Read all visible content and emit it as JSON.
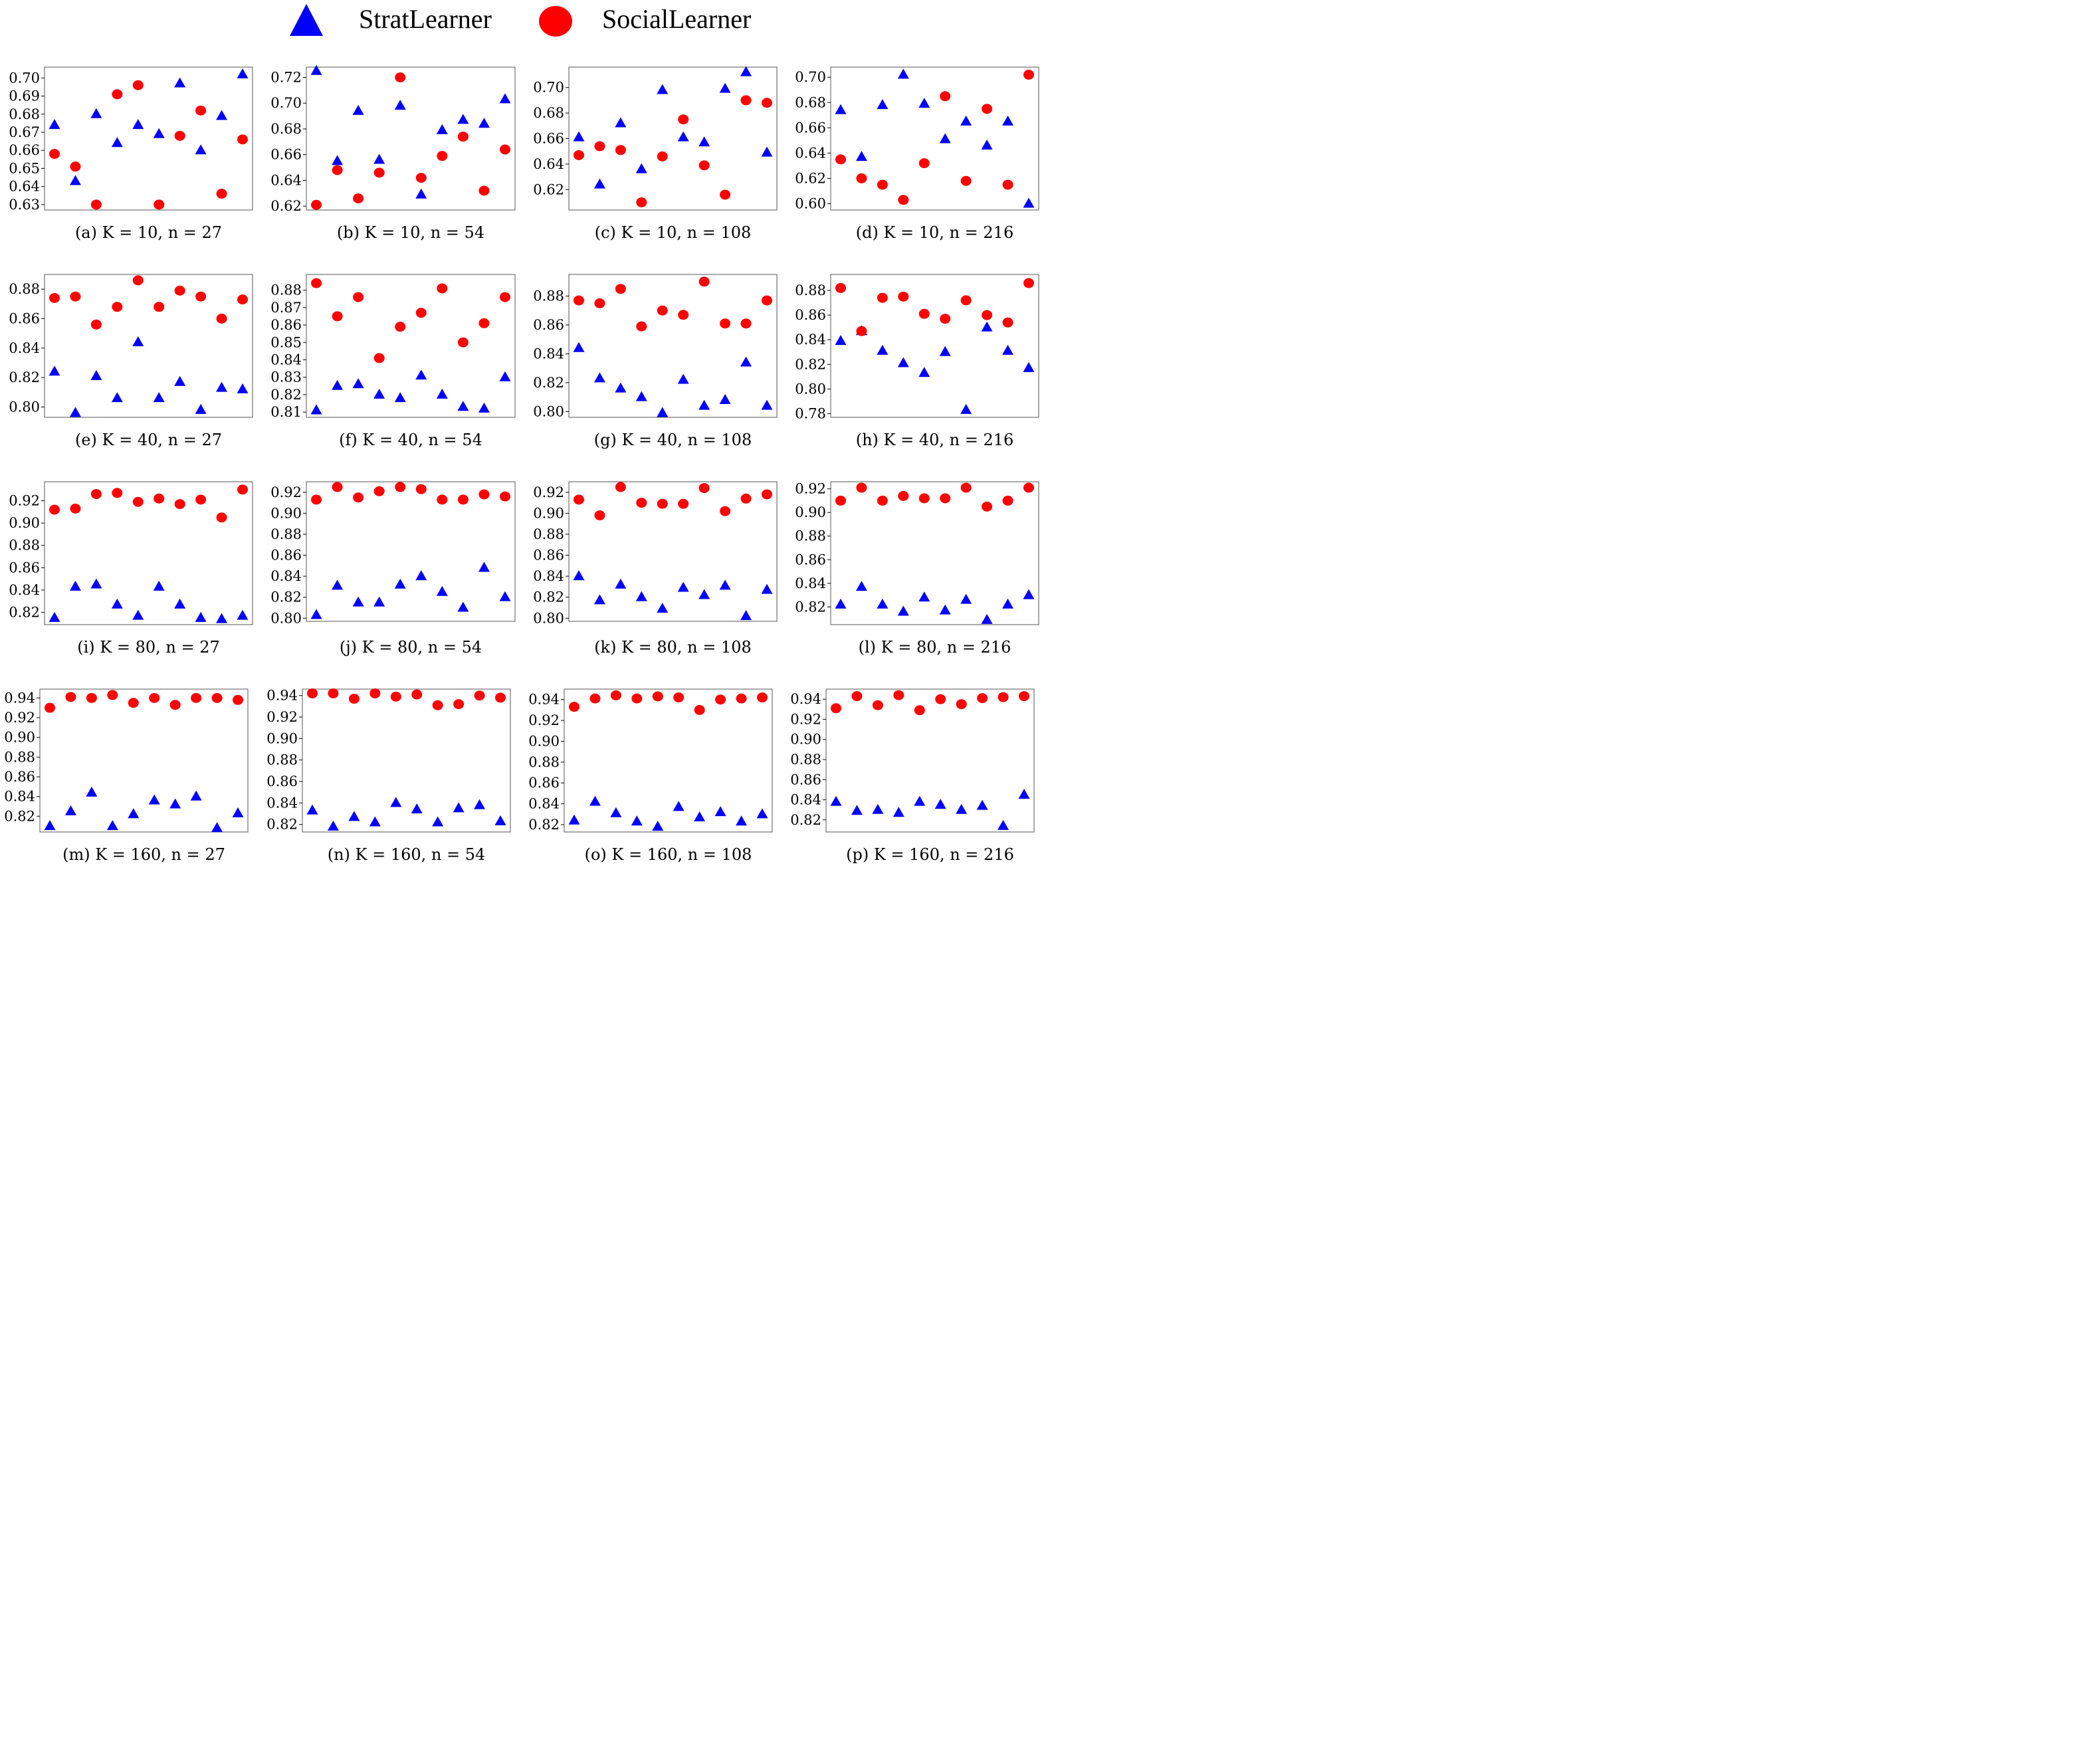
{
  "legend": {
    "strat": {
      "label": "StratLearner",
      "color": "#0000ff",
      "icon": "triangle-icon"
    },
    "social": {
      "label": "SocialLearner",
      "color": "#ff0000",
      "icon": "circle-icon"
    }
  },
  "chart_data": [
    {
      "type": "scatter",
      "caption": "(a) K = 10, n = 27",
      "yticks": [
        "0.63",
        "0.64",
        "0.65",
        "0.66",
        "0.67",
        "0.68",
        "0.69",
        "0.70"
      ],
      "ylim": [
        0.627,
        0.706
      ],
      "x": [
        1,
        2,
        3,
        4,
        5,
        6,
        7,
        8,
        9,
        10
      ],
      "series": [
        {
          "name": "StratLearner",
          "values": [
            0.674,
            0.643,
            0.68,
            0.664,
            0.674,
            0.669,
            0.697,
            0.66,
            0.679,
            0.702
          ]
        },
        {
          "name": "SocialLearner",
          "values": [
            0.658,
            0.651,
            0.63,
            0.691,
            0.696,
            0.63,
            0.668,
            0.682,
            0.636,
            0.666
          ]
        }
      ]
    },
    {
      "type": "scatter",
      "caption": "(b) K = 10, n = 54",
      "yticks": [
        "0.62",
        "0.64",
        "0.66",
        "0.68",
        "0.70",
        "0.72"
      ],
      "ylim": [
        0.617,
        0.728
      ],
      "x": [
        1,
        2,
        3,
        4,
        5,
        6,
        7,
        8,
        9,
        10
      ],
      "series": [
        {
          "name": "StratLearner",
          "values": [
            0.725,
            0.655,
            0.694,
            0.656,
            0.698,
            0.629,
            0.679,
            0.687,
            0.684,
            0.703
          ]
        },
        {
          "name": "SocialLearner",
          "values": [
            0.621,
            0.648,
            0.626,
            0.646,
            0.72,
            0.642,
            0.659,
            0.674,
            0.632,
            0.664
          ]
        }
      ]
    },
    {
      "type": "scatter",
      "caption": "(c) K = 10, n = 108",
      "yticks": [
        "0.62",
        "0.64",
        "0.66",
        "0.68",
        "0.70"
      ],
      "ylim": [
        0.604,
        0.716
      ],
      "x": [
        1,
        2,
        3,
        4,
        5,
        6,
        7,
        8,
        9,
        10
      ],
      "series": [
        {
          "name": "StratLearner",
          "values": [
            0.661,
            0.624,
            0.672,
            0.636,
            0.698,
            0.661,
            0.657,
            0.699,
            0.712,
            0.649
          ]
        },
        {
          "name": "SocialLearner",
          "values": [
            0.647,
            0.654,
            0.651,
            0.61,
            0.646,
            0.675,
            0.639,
            0.616,
            0.69,
            0.688
          ]
        }
      ]
    },
    {
      "type": "scatter",
      "caption": "(d) K = 10, n = 216",
      "yticks": [
        "0.60",
        "0.62",
        "0.64",
        "0.66",
        "0.68",
        "0.70"
      ],
      "ylim": [
        0.595,
        0.708
      ],
      "x": [
        1,
        2,
        3,
        4,
        5,
        6,
        7,
        8,
        9,
        10
      ],
      "series": [
        {
          "name": "StratLearner",
          "values": [
            0.674,
            0.637,
            0.678,
            0.702,
            0.679,
            0.651,
            0.665,
            0.646,
            0.665,
            0.6
          ]
        },
        {
          "name": "SocialLearner",
          "values": [
            0.635,
            0.62,
            0.615,
            0.603,
            0.632,
            0.685,
            0.618,
            0.675,
            0.615,
            0.702
          ]
        }
      ]
    },
    {
      "type": "scatter",
      "caption": "(e) K = 40, n = 27",
      "yticks": [
        "0.80",
        "0.82",
        "0.84",
        "0.86",
        "0.88"
      ],
      "ylim": [
        0.793,
        0.89
      ],
      "x": [
        1,
        2,
        3,
        4,
        5,
        6,
        7,
        8,
        9,
        10
      ],
      "series": [
        {
          "name": "StratLearner",
          "values": [
            0.824,
            0.796,
            0.821,
            0.806,
            0.844,
            0.806,
            0.817,
            0.798,
            0.813,
            0.812
          ]
        },
        {
          "name": "SocialLearner",
          "values": [
            0.874,
            0.875,
            0.856,
            0.868,
            0.886,
            0.868,
            0.879,
            0.875,
            0.86,
            0.873
          ]
        }
      ]
    },
    {
      "type": "scatter",
      "caption": "(f) K = 40, n = 54",
      "yticks": [
        "0.81",
        "0.82",
        "0.83",
        "0.84",
        "0.85",
        "0.86",
        "0.87",
        "0.88"
      ],
      "ylim": [
        0.807,
        0.889
      ],
      "x": [
        1,
        2,
        3,
        4,
        5,
        6,
        7,
        8,
        9,
        10
      ],
      "series": [
        {
          "name": "StratLearner",
          "values": [
            0.811,
            0.825,
            0.826,
            0.82,
            0.818,
            0.831,
            0.82,
            0.813,
            0.812,
            0.83
          ]
        },
        {
          "name": "SocialLearner",
          "values": [
            0.884,
            0.865,
            0.876,
            0.841,
            0.859,
            0.867,
            0.881,
            0.85,
            0.861,
            0.876
          ]
        }
      ]
    },
    {
      "type": "scatter",
      "caption": "(g) K = 40, n = 108",
      "yticks": [
        "0.80",
        "0.82",
        "0.84",
        "0.86",
        "0.88"
      ],
      "ylim": [
        0.796,
        0.895
      ],
      "x": [
        1,
        2,
        3,
        4,
        5,
        6,
        7,
        8,
        9,
        10
      ],
      "series": [
        {
          "name": "StratLearner",
          "values": [
            0.844,
            0.823,
            0.816,
            0.81,
            0.799,
            0.822,
            0.804,
            0.808,
            0.834,
            0.804
          ]
        },
        {
          "name": "SocialLearner",
          "values": [
            0.877,
            0.875,
            0.885,
            0.859,
            0.87,
            0.867,
            0.89,
            0.861,
            0.861,
            0.877
          ]
        }
      ]
    },
    {
      "type": "scatter",
      "caption": "(h) K = 40, n = 216",
      "yticks": [
        "0.78",
        "0.80",
        "0.82",
        "0.84",
        "0.86",
        "0.88"
      ],
      "ylim": [
        0.777,
        0.893
      ],
      "x": [
        1,
        2,
        3,
        4,
        5,
        6,
        7,
        8,
        9,
        10
      ],
      "series": [
        {
          "name": "StratLearner",
          "values": [
            0.839,
            0.847,
            0.831,
            0.821,
            0.813,
            0.83,
            0.783,
            0.85,
            0.831,
            0.817
          ]
        },
        {
          "name": "SocialLearner",
          "values": [
            0.882,
            0.847,
            0.874,
            0.875,
            0.861,
            0.857,
            0.872,
            0.86,
            0.854,
            0.886
          ]
        }
      ]
    },
    {
      "type": "scatter",
      "caption": "(i) K = 80, n = 27",
      "yticks": [
        "0.82",
        "0.84",
        "0.86",
        "0.88",
        "0.90",
        "0.92"
      ],
      "ylim": [
        0.809,
        0.937
      ],
      "x": [
        1,
        2,
        3,
        4,
        5,
        6,
        7,
        8,
        9,
        10
      ],
      "series": [
        {
          "name": "StratLearner",
          "values": [
            0.815,
            0.843,
            0.845,
            0.827,
            0.817,
            0.843,
            0.827,
            0.815,
            0.814,
            0.817
          ]
        },
        {
          "name": "SocialLearner",
          "values": [
            0.912,
            0.913,
            0.926,
            0.927,
            0.919,
            0.922,
            0.917,
            0.921,
            0.905,
            0.93
          ]
        }
      ]
    },
    {
      "type": "scatter",
      "caption": "(j) K = 80, n = 54",
      "yticks": [
        "0.80",
        "0.82",
        "0.84",
        "0.86",
        "0.88",
        "0.90",
        "0.92"
      ],
      "ylim": [
        0.797,
        0.93
      ],
      "x": [
        1,
        2,
        3,
        4,
        5,
        6,
        7,
        8,
        9,
        10
      ],
      "series": [
        {
          "name": "StratLearner",
          "values": [
            0.803,
            0.831,
            0.815,
            0.815,
            0.832,
            0.84,
            0.825,
            0.81,
            0.848,
            0.82
          ]
        },
        {
          "name": "SocialLearner",
          "values": [
            0.913,
            0.925,
            0.915,
            0.921,
            0.925,
            0.923,
            0.913,
            0.913,
            0.918,
            0.916
          ]
        }
      ]
    },
    {
      "type": "scatter",
      "caption": "(k) K = 80, n = 108",
      "yticks": [
        "0.80",
        "0.82",
        "0.84",
        "0.86",
        "0.88",
        "0.90",
        "0.92"
      ],
      "ylim": [
        0.797,
        0.93
      ],
      "x": [
        1,
        2,
        3,
        4,
        5,
        6,
        7,
        8,
        9,
        10
      ],
      "series": [
        {
          "name": "StratLearner",
          "values": [
            0.84,
            0.817,
            0.832,
            0.82,
            0.809,
            0.829,
            0.822,
            0.831,
            0.802,
            0.827
          ]
        },
        {
          "name": "SocialLearner",
          "values": [
            0.913,
            0.898,
            0.925,
            0.91,
            0.909,
            0.909,
            0.924,
            0.902,
            0.914,
            0.918
          ]
        }
      ]
    },
    {
      "type": "scatter",
      "caption": "(l) K = 80, n = 216",
      "yticks": [
        "0.82",
        "0.84",
        "0.86",
        "0.88",
        "0.90",
        "0.92"
      ],
      "ylim": [
        0.805,
        0.926
      ],
      "x": [
        1,
        2,
        3,
        4,
        5,
        6,
        7,
        8,
        9,
        10
      ],
      "series": [
        {
          "name": "StratLearner",
          "values": [
            0.822,
            0.837,
            0.822,
            0.816,
            0.828,
            0.817,
            0.826,
            0.809,
            0.822,
            0.83
          ]
        },
        {
          "name": "SocialLearner",
          "values": [
            0.91,
            0.921,
            0.91,
            0.914,
            0.912,
            0.912,
            0.921,
            0.905,
            0.91,
            0.921
          ]
        }
      ]
    },
    {
      "type": "scatter",
      "caption": "(m) K = 160, n = 27",
      "yticks": [
        "0.82",
        "0.84",
        "0.86",
        "0.88",
        "0.90",
        "0.92",
        "0.94"
      ],
      "ylim": [
        0.804,
        0.949
      ],
      "x": [
        1,
        2,
        3,
        4,
        5,
        6,
        7,
        8,
        9,
        10
      ],
      "series": [
        {
          "name": "StratLearner",
          "values": [
            0.81,
            0.825,
            0.844,
            0.81,
            0.822,
            0.836,
            0.832,
            0.84,
            0.808,
            0.823
          ]
        },
        {
          "name": "SocialLearner",
          "values": [
            0.93,
            0.941,
            0.94,
            0.943,
            0.935,
            0.94,
            0.933,
            0.94,
            0.94,
            0.938
          ]
        }
      ]
    },
    {
      "type": "scatter",
      "caption": "(n) K = 160, n = 54",
      "yticks": [
        "0.82",
        "0.84",
        "0.86",
        "0.88",
        "0.90",
        "0.92",
        "0.94"
      ],
      "ylim": [
        0.813,
        0.946
      ],
      "x": [
        1,
        2,
        3,
        4,
        5,
        6,
        7,
        8,
        9,
        10
      ],
      "series": [
        {
          "name": "StratLearner",
          "values": [
            0.833,
            0.818,
            0.827,
            0.822,
            0.84,
            0.834,
            0.822,
            0.835,
            0.838,
            0.823
          ]
        },
        {
          "name": "SocialLearner",
          "values": [
            0.942,
            0.942,
            0.937,
            0.942,
            0.939,
            0.941,
            0.931,
            0.932,
            0.94,
            0.938
          ]
        }
      ]
    },
    {
      "type": "scatter",
      "caption": "(o) K = 160, n = 108",
      "yticks": [
        "0.82",
        "0.84",
        "0.86",
        "0.88",
        "0.90",
        "0.92",
        "0.94"
      ],
      "ylim": [
        0.813,
        0.95
      ],
      "x": [
        1,
        2,
        3,
        4,
        5,
        6,
        7,
        8,
        9,
        10
      ],
      "series": [
        {
          "name": "StratLearner",
          "values": [
            0.824,
            0.842,
            0.831,
            0.823,
            0.818,
            0.837,
            0.827,
            0.832,
            0.823,
            0.83
          ]
        },
        {
          "name": "SocialLearner",
          "values": [
            0.933,
            0.941,
            0.944,
            0.941,
            0.943,
            0.942,
            0.93,
            0.94,
            0.941,
            0.942
          ]
        }
      ]
    },
    {
      "type": "scatter",
      "caption": "(p) K = 160, n = 216",
      "yticks": [
        "0.82",
        "0.84",
        "0.86",
        "0.88",
        "0.90",
        "0.92",
        "0.94"
      ],
      "ylim": [
        0.808,
        0.95
      ],
      "x": [
        1,
        2,
        3,
        4,
        5,
        6,
        7,
        8,
        9,
        10
      ],
      "series": [
        {
          "name": "StratLearner",
          "values": [
            0.838,
            0.829,
            0.83,
            0.827,
            0.838,
            0.835,
            0.83,
            0.834,
            0.814,
            0.845
          ]
        },
        {
          "name": "SocialLearner",
          "values": [
            0.931,
            0.943,
            0.934,
            0.944,
            0.929,
            0.94,
            0.935,
            0.941,
            0.942,
            0.943
          ]
        }
      ]
    }
  ]
}
